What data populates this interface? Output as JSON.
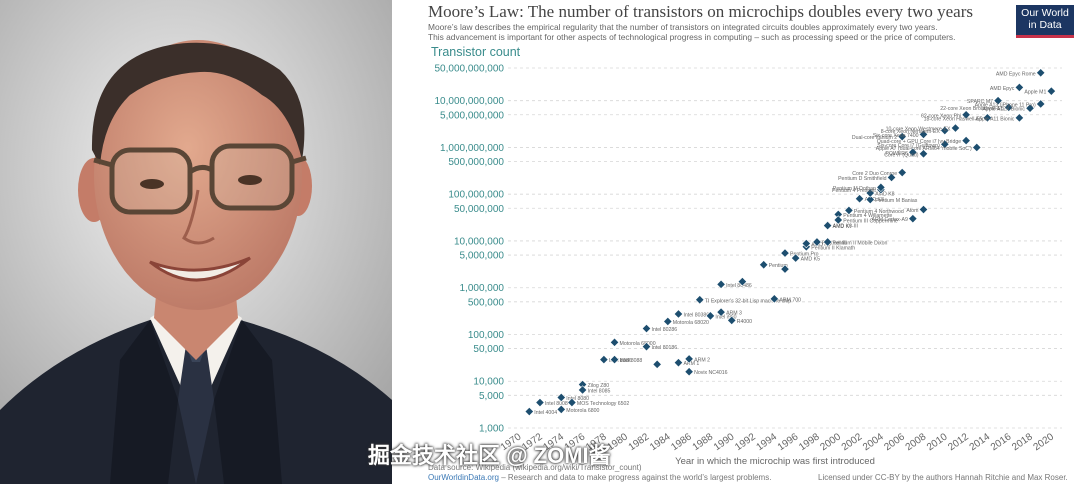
{
  "chart_data": {
    "type": "scatter",
    "title": "Moore’s Law: The number of transistors on microchips doubles every two years",
    "subtitle_lines": [
      "Moore’s law describes the empirical regularity that the number of transistors on integrated circuits doubles approximately every two years.",
      "This advancement is important for other aspects of technological progress in computing – such as processing speed or the price of computers."
    ],
    "ylabel": "Transistor count",
    "xlabel": "Year in which the microchip was first introduced",
    "y_scale": "log",
    "ylim": [
      1000,
      50000000000
    ],
    "xlim": [
      1969,
      2021
    ],
    "y_ticks": [
      {
        "value": 1000,
        "label": "1,000"
      },
      {
        "value": 5000,
        "label": "5,000"
      },
      {
        "value": 10000,
        "label": "10,000"
      },
      {
        "value": 50000,
        "label": "50,000"
      },
      {
        "value": 100000,
        "label": "100,000"
      },
      {
        "value": 500000,
        "label": "500,000"
      },
      {
        "value": 1000000,
        "label": "1,000,000"
      },
      {
        "value": 5000000,
        "label": "5,000,000"
      },
      {
        "value": 10000000,
        "label": "10,000,000"
      },
      {
        "value": 50000000,
        "label": "50,000,000"
      },
      {
        "value": 100000000,
        "label": "100,000,000"
      },
      {
        "value": 500000000,
        "label": "500,000,000"
      },
      {
        "value": 1000000000,
        "label": "1,000,000,000"
      },
      {
        "value": 5000000000,
        "label": "5,000,000,000"
      },
      {
        "value": 10000000000,
        "label": "10,000,000,000"
      },
      {
        "value": 50000000000,
        "label": "50,000,000,000"
      }
    ],
    "x_ticks": [
      "1970",
      "1972",
      "1974",
      "1976",
      "1978",
      "1980",
      "1982",
      "1984",
      "1986",
      "1988",
      "1990",
      "1992",
      "1994",
      "1996",
      "1998",
      "2000",
      "2002",
      "2004",
      "2006",
      "2008",
      "2010",
      "2012",
      "2014",
      "2016",
      "2018",
      "2020"
    ],
    "grid": true,
    "marker_color": "#1d4e6f",
    "points": [
      {
        "x": 1971,
        "y": 2250,
        "label": "Intel 4004"
      },
      {
        "x": 1972,
        "y": 3500,
        "label": "Intel 8008"
      },
      {
        "x": 1974,
        "y": 4500,
        "label": "Intel 8080"
      },
      {
        "x": 1974,
        "y": 2500,
        "label": "Motorola 6800"
      },
      {
        "x": 1975,
        "y": 3510,
        "label": "MOS Technology 6502"
      },
      {
        "x": 1976,
        "y": 8500,
        "label": "Zilog Z80"
      },
      {
        "x": 1976,
        "y": 6500,
        "label": "Intel 8085"
      },
      {
        "x": 1978,
        "y": 29000,
        "label": "Intel 8086"
      },
      {
        "x": 1979,
        "y": 68000,
        "label": "Motorola 68000"
      },
      {
        "x": 1979,
        "y": 29000,
        "label": "Intel 8088"
      },
      {
        "x": 1982,
        "y": 134000,
        "label": "Intel 80286"
      },
      {
        "x": 1982,
        "y": 55000,
        "label": "Intel 80186"
      },
      {
        "x": 1983,
        "y": 23000,
        "label": ""
      },
      {
        "x": 1984,
        "y": 190000,
        "label": "Motorola 68020"
      },
      {
        "x": 1985,
        "y": 275000,
        "label": "Intel 80386"
      },
      {
        "x": 1985,
        "y": 25000,
        "label": "ARM 1"
      },
      {
        "x": 1986,
        "y": 30000,
        "label": "ARM 2"
      },
      {
        "x": 1986,
        "y": 16000,
        "label": "Novix NC4016"
      },
      {
        "x": 1987,
        "y": 553000,
        "label": "TI Explorer's 32-bit Lisp machine chip"
      },
      {
        "x": 1988,
        "y": 250000,
        "label": "Intel i960"
      },
      {
        "x": 1989,
        "y": 1180235,
        "label": "Intel 80486"
      },
      {
        "x": 1989,
        "y": 300000,
        "label": "ARM 3"
      },
      {
        "x": 1990,
        "y": 200000,
        "label": "R4000"
      },
      {
        "x": 1991,
        "y": 1350000,
        "label": ""
      },
      {
        "x": 1993,
        "y": 3100000,
        "label": "Pentium"
      },
      {
        "x": 1994,
        "y": 578977,
        "label": "ARM 700"
      },
      {
        "x": 1995,
        "y": 5500000,
        "label": "Pentium Pro"
      },
      {
        "x": 1995,
        "y": 2500000,
        "label": ""
      },
      {
        "x": 1996,
        "y": 4300000,
        "label": "AMD K5"
      },
      {
        "x": 1997,
        "y": 7500000,
        "label": "Pentium II Klamath"
      },
      {
        "x": 1997,
        "y": 8800000,
        "label": "AMD K6"
      },
      {
        "x": 1998,
        "y": 9500000,
        "label": "Pentium III"
      },
      {
        "x": 1999,
        "y": 22000000,
        "label": "AMD K6-III"
      },
      {
        "x": 1999,
        "y": 9500000,
        "label": "Pentium II Mobile Dixon"
      },
      {
        "x": 1999,
        "y": 21300000,
        "label": "AMD K7"
      },
      {
        "x": 2000,
        "y": 37000000,
        "label": "Pentium 4 Willamette"
      },
      {
        "x": 2000,
        "y": 28100000,
        "label": "Pentium III Coppermine"
      },
      {
        "x": 2001,
        "y": 45000000,
        "label": "Pentium 4 Northwood"
      },
      {
        "x": 2002,
        "y": 80000000,
        "label": "AMD K8"
      },
      {
        "x": 2003,
        "y": 77000000,
        "label": "Pentium M Banias"
      },
      {
        "x": 2003,
        "y": 105900000,
        "label": "AMD K8"
      },
      {
        "x": 2004,
        "y": 125000000,
        "label": "Pentium 4 Prescott"
      },
      {
        "x": 2004,
        "y": 140000000,
        "label": "Pentium M Dothan"
      },
      {
        "x": 2005,
        "y": 228000000,
        "label": "Pentium D Smithfield"
      },
      {
        "x": 2006,
        "y": 291000000,
        "label": "Core 2 Duo Conroe"
      },
      {
        "x": 2006,
        "y": 1700000000,
        "label": "Dual-core Itanium 2"
      },
      {
        "x": 2007,
        "y": 789000000,
        "label": "POWER6"
      },
      {
        "x": 2007,
        "y": 30000000,
        "label": "ARM Cortex-A9"
      },
      {
        "x": 2008,
        "y": 47000000,
        "label": "Atom"
      },
      {
        "x": 2008,
        "y": 731000000,
        "label": "Core i7 (Quad)"
      },
      {
        "x": 2008,
        "y": 1900000000,
        "label": "Six-core Xeon 7400"
      },
      {
        "x": 2010,
        "y": 2300000000,
        "label": "8-core Xeon Nehalem-EX"
      },
      {
        "x": 2010,
        "y": 1170000000,
        "label": "Six-core Core i7 (Gulftown)"
      },
      {
        "x": 2011,
        "y": 2600000000,
        "label": "10-core Xeon Westmere-EX"
      },
      {
        "x": 2012,
        "y": 5000000000,
        "label": "62-core Xeon Phi"
      },
      {
        "x": 2012,
        "y": 1400000000,
        "label": "Quad-core + GPU Core i7 Ivy Bridge"
      },
      {
        "x": 2013,
        "y": 1000000000,
        "label": "Apple A7 (dual-core ARM64 'mobile SoC')"
      },
      {
        "x": 2014,
        "y": 4310000000,
        "label": "18-core Xeon Haswell-E5"
      },
      {
        "x": 2015,
        "y": 10000000000,
        "label": "SPARC M7"
      },
      {
        "x": 2016,
        "y": 7200000000,
        "label": "22-core Xeon Broadwell-E5"
      },
      {
        "x": 2017,
        "y": 19200000000,
        "label": "AMD Epyc"
      },
      {
        "x": 2017,
        "y": 4300000000,
        "label": "Apple A11 Bionic"
      },
      {
        "x": 2018,
        "y": 6900000000,
        "label": "Apple A12X Bionic"
      },
      {
        "x": 2019,
        "y": 39540000000,
        "label": "AMD Epyc Rome"
      },
      {
        "x": 2019,
        "y": 8500000000,
        "label": "Apple A13 (iPhone 11 Pro)"
      },
      {
        "x": 2020,
        "y": 16000000000,
        "label": "Apple M1"
      }
    ],
    "source": "Data source: Wikipedia (wikipedia.org/wiki/Transistor_count)",
    "site": "OurWorldinData.org",
    "site_text": " – Research and data to make progress against the world’s largest problems.",
    "license": "Licensed under CC-BY by the authors Hannah Ritchie and Max Roser."
  },
  "logo": {
    "line1": "Our World",
    "line2": "in Data"
  },
  "watermark": "掘金技术社区 @ ZOMI酱",
  "colors": {
    "accent": "#3a8c8c",
    "marker": "#1d4e6f",
    "logo_bg": "#1c3662",
    "logo_bar": "#c8324a",
    "suit": "#1f2430"
  }
}
